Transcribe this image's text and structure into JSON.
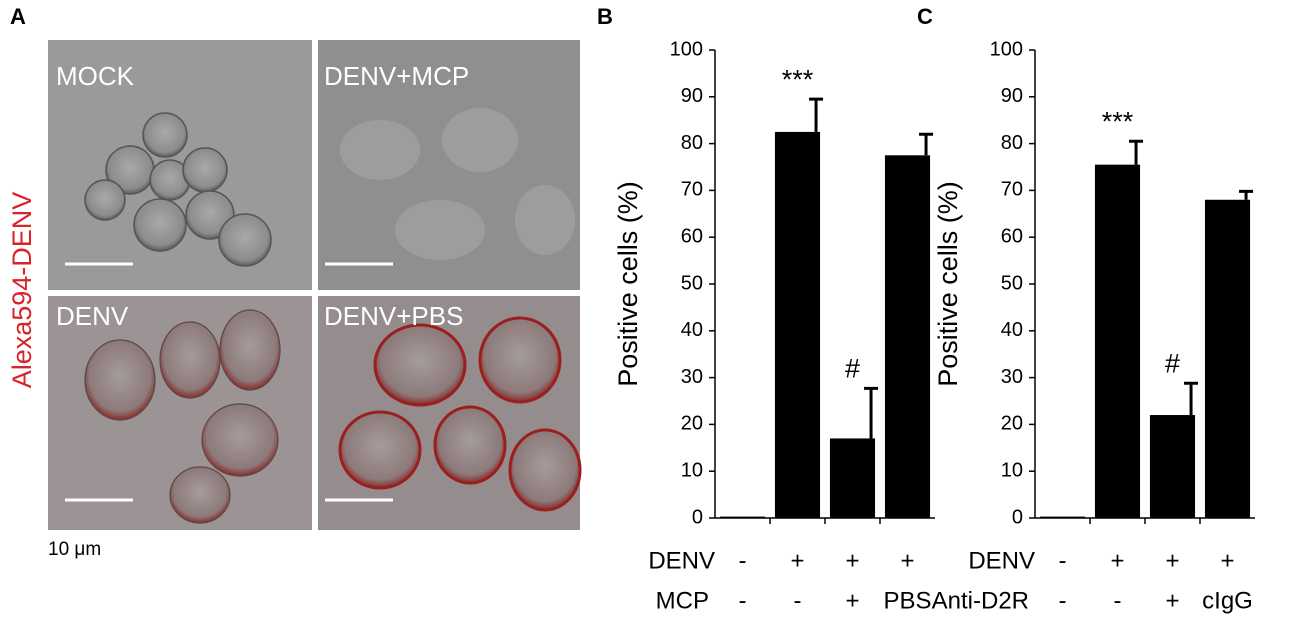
{
  "panel_a": {
    "panel_label": "A",
    "side_label": "Alexa594-DENV",
    "images": [
      "MOCK",
      "DENV+MCP",
      "DENV",
      "DENV+PBS"
    ],
    "scale_label": "10 μm"
  },
  "chart_data": [
    {
      "type": "bar",
      "panel_label": "B",
      "ylabel": "Positive cells (%)",
      "color": "#000000",
      "values": [
        0.3,
        82.5,
        17,
        77.5
      ],
      "errors": [
        0,
        7,
        10.7,
        4.5
      ],
      "bar_annotations": [
        null,
        "***",
        "#",
        null
      ],
      "category_rows": [
        {
          "name": "DENV",
          "labels": [
            "-",
            "+",
            "+",
            "+"
          ]
        },
        {
          "name": "MCP",
          "labels": [
            "-",
            "-",
            "+",
            "PBS"
          ]
        }
      ],
      "ylim": [
        0,
        100
      ],
      "yticks": [
        0,
        10,
        20,
        30,
        40,
        50,
        60,
        70,
        80,
        90,
        100
      ]
    },
    {
      "type": "bar",
      "panel_label": "C",
      "ylabel": "Positive cells (%)",
      "color": "#000000",
      "values": [
        0.3,
        75.5,
        22,
        68
      ],
      "errors": [
        0,
        5,
        6.8,
        1.8
      ],
      "bar_annotations": [
        null,
        "***",
        "#",
        null
      ],
      "category_rows": [
        {
          "name": "DENV",
          "labels": [
            "-",
            "+",
            "+",
            "+"
          ]
        },
        {
          "name": "Anti-D2R",
          "labels": [
            "-",
            "-",
            "+",
            "cIgG"
          ]
        }
      ],
      "ylim": [
        0,
        100
      ],
      "yticks": [
        0,
        10,
        20,
        30,
        40,
        50,
        60,
        70,
        80,
        90,
        100
      ]
    }
  ]
}
